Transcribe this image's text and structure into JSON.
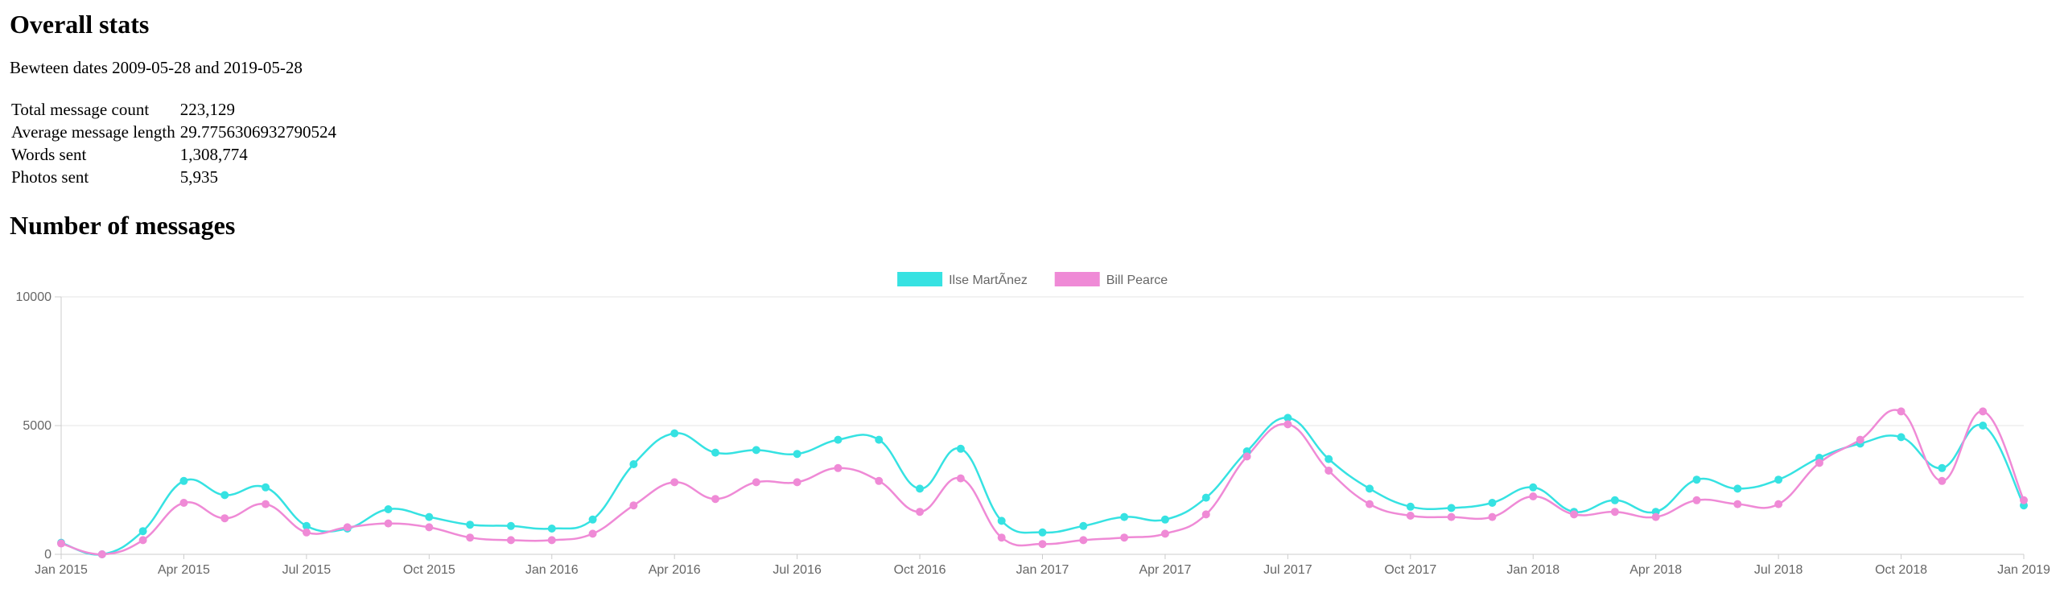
{
  "page": {
    "title": "Overall stats",
    "date_range": "Bewteen dates 2009-05-28 and 2019-05-28",
    "chart_heading": "Number of messages"
  },
  "stats": [
    {
      "label": "Total message count",
      "value": "223,129"
    },
    {
      "label": "Average message length",
      "value": "29.7756306932790524"
    },
    {
      "label": "Words sent",
      "value": "1,308,774"
    },
    {
      "label": "Photos sent",
      "value": "5,935"
    }
  ],
  "chart_data": {
    "type": "line",
    "title": "",
    "xlabel": "",
    "ylabel": "",
    "ylim": [
      0,
      10000
    ],
    "y_ticks": [
      0,
      5000,
      10000
    ],
    "x_tick_labels": [
      "Jan 2015",
      "Apr 2015",
      "Jul 2015",
      "Oct 2015",
      "Jan 2016",
      "Apr 2016",
      "Jul 2016",
      "Oct 2016",
      "Jan 2017",
      "Apr 2017",
      "Jul 2017",
      "Oct 2017",
      "Jan 2018",
      "Apr 2018",
      "Jul 2018",
      "Oct 2018",
      "Jan 2019"
    ],
    "grid": "horizontal",
    "legend_position": "top-center",
    "x": [
      "2015-01",
      "2015-02",
      "2015-03",
      "2015-04",
      "2015-05",
      "2015-06",
      "2015-07",
      "2015-08",
      "2015-09",
      "2015-10",
      "2015-11",
      "2015-12",
      "2016-01",
      "2016-02",
      "2016-03",
      "2016-04",
      "2016-05",
      "2016-06",
      "2016-07",
      "2016-08",
      "2016-09",
      "2016-10",
      "2016-11",
      "2016-12",
      "2017-01",
      "2017-02",
      "2017-03",
      "2017-04",
      "2017-05",
      "2017-06",
      "2017-07",
      "2017-08",
      "2017-09",
      "2017-10",
      "2017-11",
      "2017-12",
      "2018-01",
      "2018-02",
      "2018-03",
      "2018-04",
      "2018-05",
      "2018-06",
      "2018-07",
      "2018-08",
      "2018-09",
      "2018-10",
      "2018-11",
      "2018-12",
      "2019-01"
    ],
    "series": [
      {
        "name": "Ilse MartÃnez",
        "color": "#36e2e2",
        "values": [
          450,
          0,
          900,
          2850,
          2300,
          2600,
          1100,
          1000,
          1750,
          1450,
          1150,
          1100,
          1000,
          1350,
          3500,
          4700,
          3950,
          4050,
          3900,
          4450,
          4450,
          2550,
          4100,
          1300,
          850,
          1100,
          1450,
          1350,
          2200,
          4000,
          5300,
          3700,
          2550,
          1850,
          1800,
          2000,
          2600,
          1650,
          2100,
          1650,
          2900,
          2550,
          2900,
          3750,
          4300,
          4550,
          3350,
          5000,
          1900
        ]
      },
      {
        "name": "Bill Pearce",
        "color": "#ef8ad6",
        "values": [
          420,
          0,
          550,
          2000,
          1400,
          1950,
          850,
          1050,
          1200,
          1050,
          650,
          550,
          550,
          800,
          1900,
          2800,
          2150,
          2800,
          2800,
          3350,
          2850,
          1650,
          2950,
          650,
          400,
          550,
          650,
          800,
          1550,
          3800,
          5050,
          3250,
          1950,
          1500,
          1450,
          1450,
          2250,
          1550,
          1650,
          1450,
          2100,
          1950,
          1950,
          3550,
          4450,
          5550,
          2850,
          5550,
          2100
        ]
      }
    ]
  }
}
